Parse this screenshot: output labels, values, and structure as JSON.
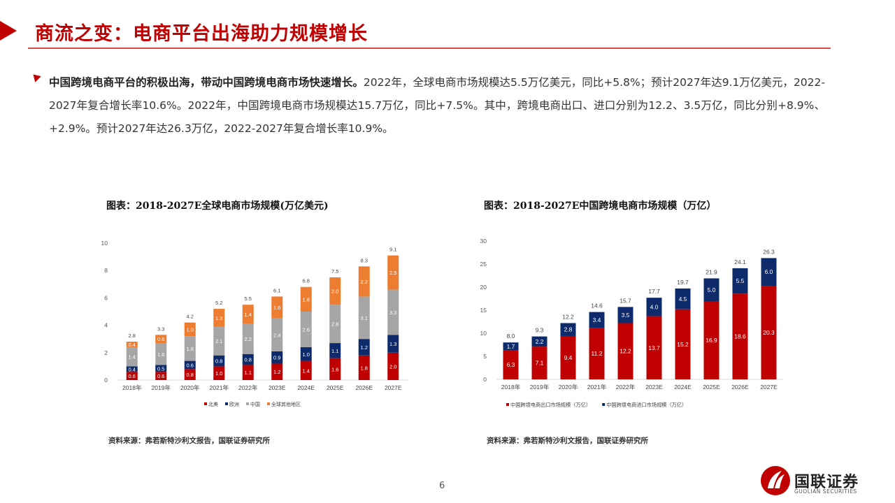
{
  "header": {
    "title": "商流之变：电商平台出海助力规模增长"
  },
  "summary": {
    "lead": "中国跨境电商平台的积极出海，带动中国跨境电商市场快速增长。",
    "body": "2022年，全球电商市场规模达5.5万亿美元，同比+5.8%；预计2027年达9.1万亿美元，2022-2027年复合增长率10.6%。2022年，中国跨境电商市场规模达15.7万亿，同比+7.5%。其中，跨境电商出口、进口分别为12.2、3.5万亿，同比分别+8.9%、+2.9%。预计2027年达26.3万亿，2022-2027年复合增长率10.9%。"
  },
  "colors": {
    "accent": "#c00000",
    "red": "#c00000",
    "navy": "#0d2a6b",
    "gray": "#a6a6a6",
    "orange": "#ed7d31"
  },
  "chart_data": [
    {
      "type": "bar",
      "stacked": true,
      "title": "图表：2018-2027E全球电商市场规模(万亿美元)",
      "categories": [
        "2018年",
        "2019年",
        "2020年",
        "2021年",
        "2022年",
        "2023E",
        "2024E",
        "2025E",
        "2026E",
        "2027E"
      ],
      "series": [
        {
          "name": "北美",
          "color": "#c00000",
          "values": [
            0.6,
            0.6,
            0.8,
            1.0,
            1.1,
            1.2,
            1.4,
            1.6,
            1.8,
            2.0
          ]
        },
        {
          "name": "欧洲",
          "color": "#0d2a6b",
          "values": [
            0.4,
            0.5,
            0.6,
            0.8,
            0.8,
            0.9,
            1.0,
            1.1,
            1.2,
            1.3
          ]
        },
        {
          "name": "中国",
          "color": "#a6a6a6",
          "values": [
            1.4,
            1.6,
            1.8,
            2.1,
            2.2,
            2.4,
            2.6,
            2.8,
            3.1,
            3.3
          ]
        },
        {
          "name": "全球其他地区",
          "color": "#ed7d31",
          "values": [
            0.4,
            0.6,
            1.0,
            1.3,
            1.4,
            1.6,
            1.8,
            2.0,
            2.2,
            2.5
          ]
        }
      ],
      "totals": [
        2.8,
        3.3,
        4.2,
        5.2,
        5.5,
        6.1,
        6.8,
        7.5,
        8.3,
        9.1
      ],
      "ylim": [
        0,
        10
      ],
      "yticks": [
        0,
        2,
        4,
        6,
        8,
        10
      ],
      "legend": "bottom",
      "grid": false,
      "source": "资料来源：弗若斯特沙利文报告，国联证券研究所"
    },
    {
      "type": "bar",
      "stacked": true,
      "title": "图表：2018-2027E中国跨境电商市场规模（万亿）",
      "categories": [
        "2018年",
        "2019年",
        "2020年",
        "2021年",
        "2022年",
        "2023E",
        "2024E",
        "2025E",
        "2026E",
        "2027E"
      ],
      "series": [
        {
          "name": "中国跨境电商出口市场规模（万亿）",
          "color": "#c00000",
          "values": [
            6.3,
            7.1,
            9.4,
            11.2,
            12.2,
            13.7,
            15.2,
            16.9,
            18.6,
            20.3
          ]
        },
        {
          "name": "中国跨境电商进口市场规模（万亿）",
          "color": "#0d2a6b",
          "values": [
            1.7,
            2.2,
            2.8,
            3.4,
            3.5,
            4.0,
            4.5,
            5.0,
            5.5,
            6.0
          ]
        }
      ],
      "totals": [
        8.0,
        9.3,
        12.2,
        14.6,
        15.7,
        17.7,
        19.7,
        21.9,
        24.1,
        26.3
      ],
      "ylim": [
        0,
        30
      ],
      "yticks": [
        0,
        5,
        10,
        15,
        20,
        25,
        30
      ],
      "legend": "bottom",
      "grid": false,
      "source": "资料来源：弗若斯特沙利文报告，国联证券研究所"
    }
  ],
  "footer": {
    "page": "6",
    "logo_name": "国联证券",
    "logo_sub": "GUOLIAN SECURITIES"
  }
}
